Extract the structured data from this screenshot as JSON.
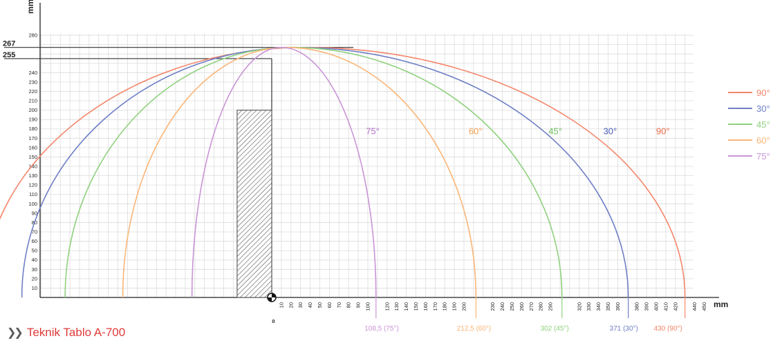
{
  "chart_data": {
    "type": "line",
    "title": "",
    "x_unit_label": "mm",
    "y_unit_label": "mm",
    "xlim": [
      -340,
      450
    ],
    "ylim": [
      0,
      290
    ],
    "y_ticks": [
      10,
      20,
      30,
      40,
      50,
      60,
      70,
      80,
      90,
      100,
      110,
      120,
      130,
      140,
      150,
      160,
      170,
      180,
      190,
      200,
      210,
      220,
      230,
      240,
      280
    ],
    "x_ticks": [
      10,
      20,
      30,
      40,
      50,
      60,
      70,
      80,
      90,
      100,
      120,
      130,
      140,
      150,
      160,
      170,
      180,
      190,
      200,
      230,
      240,
      250,
      260,
      270,
      280,
      290,
      320,
      330,
      340,
      350,
      360,
      380,
      390,
      400,
      410,
      420,
      440,
      450
    ],
    "x_zero_label": "0",
    "reference_heights": [
      {
        "value": 267,
        "label": "267"
      },
      {
        "value": 255,
        "label": "255"
      }
    ],
    "obstacle": {
      "x0": -36,
      "x1": 0,
      "height": 200
    },
    "series": [
      {
        "name": "90°",
        "color": "#f4866a",
        "left_end": -300,
        "right_end": 430,
        "peak": 267,
        "peak_x": 35,
        "range_label": "430 (90°)",
        "label_x": 398
      },
      {
        "name": "30°",
        "color": "#6e7fc6",
        "left_end": -260,
        "right_end": 371,
        "peak": 267,
        "peak_x": 25,
        "range_label": "371 (30°)",
        "label_x": 352
      },
      {
        "name": "45°",
        "color": "#8fd17e",
        "left_end": -215,
        "right_end": 302,
        "peak": 267,
        "peak_x": 20,
        "range_label": "302 (45°)",
        "label_x": 280
      },
      {
        "name": "60°",
        "color": "#fbb576",
        "left_end": -155,
        "right_end": 212.5,
        "peak": 267,
        "peak_x": 15,
        "range_label": "212,5 (60°)",
        "label_x": 196
      },
      {
        "name": "75°",
        "color": "#c994d6",
        "left_end": -83,
        "right_end": 108.5,
        "peak": 267,
        "peak_x": 10,
        "range_label": "108,5 (75°)",
        "label_x": 100
      }
    ],
    "inline_labels": [
      {
        "text": "75°",
        "x": 98,
        "y": 178,
        "color": "#b36fca"
      },
      {
        "text": "60°",
        "x": 205,
        "y": 178,
        "color": "#f5a04e"
      },
      {
        "text": "45°",
        "x": 288,
        "y": 178,
        "color": "#6cbe5c"
      },
      {
        "text": "30°",
        "x": 345,
        "y": 178,
        "color": "#4a5fb8"
      },
      {
        "text": "90°",
        "x": 400,
        "y": 178,
        "color": "#ec6b48"
      }
    ],
    "legend_position": "right",
    "legend": [
      {
        "label": "90°",
        "color": "#f4866a"
      },
      {
        "label": "30°",
        "color": "#6e7fc6"
      },
      {
        "label": "45°",
        "color": "#8fd17e"
      },
      {
        "label": "60°",
        "color": "#fbb576"
      },
      {
        "label": "75°",
        "color": "#c994d6"
      }
    ],
    "grid": true
  },
  "footer": {
    "chevron_icon": "double-chevron-right-icon",
    "link_text": "Teknik Tablo A-700",
    "link_color": "#e03a3a"
  }
}
